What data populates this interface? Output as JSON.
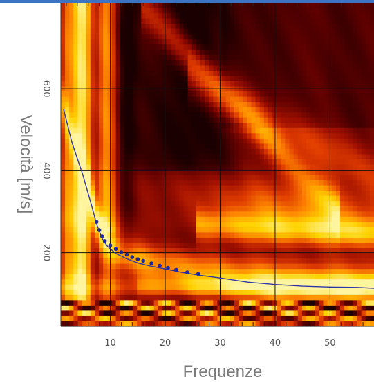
{
  "chart_data": {
    "type": "heatmap",
    "title": "",
    "xlabel": "Frequenze",
    "ylabel": "Velocità [m/s]",
    "xlim": [
      1,
      58
    ],
    "ylim": [
      20,
      810
    ],
    "x_ticks": [
      10,
      20,
      30,
      40,
      50
    ],
    "x_minor_ticks": [
      2,
      4,
      6,
      8,
      12,
      14,
      16,
      18,
      22,
      24,
      26,
      28,
      32,
      34,
      36,
      38,
      42,
      44,
      46,
      48,
      52,
      54,
      56
    ],
    "y_ticks": [
      200,
      400,
      600
    ],
    "grid": true,
    "colormap": [
      "#1a0000",
      "#5a0000",
      "#a01000",
      "#e03c00",
      "#ff8a00",
      "#ffd200",
      "#fff5a0"
    ],
    "grid_color": "#111111",
    "curve_color": "#2f35a8",
    "point_color": "#1f27a0",
    "dispersion_curve": {
      "x": [
        1.5,
        3,
        5,
        6.5,
        7.5,
        8.5,
        9.5,
        11,
        13,
        15,
        17,
        20,
        23,
        26,
        30,
        35,
        40,
        45,
        50,
        55,
        58
      ],
      "y": [
        550,
        470,
        390,
        320,
        270,
        235,
        215,
        198,
        185,
        175,
        168,
        160,
        152,
        145,
        138,
        128,
        122,
        118,
        116,
        115,
        113
      ]
    },
    "picked_points": {
      "x": [
        7.5,
        8.0,
        8.5,
        9.0,
        10.0,
        11.0,
        12.0,
        13.0,
        14.0,
        15.0,
        16.0,
        17.5,
        19.0,
        20.5,
        22.0,
        24.0,
        26.0
      ],
      "y": [
        275,
        255,
        240,
        228,
        218,
        209,
        201,
        195,
        189,
        184,
        180,
        174,
        168,
        163,
        158,
        152,
        148
      ]
    }
  }
}
